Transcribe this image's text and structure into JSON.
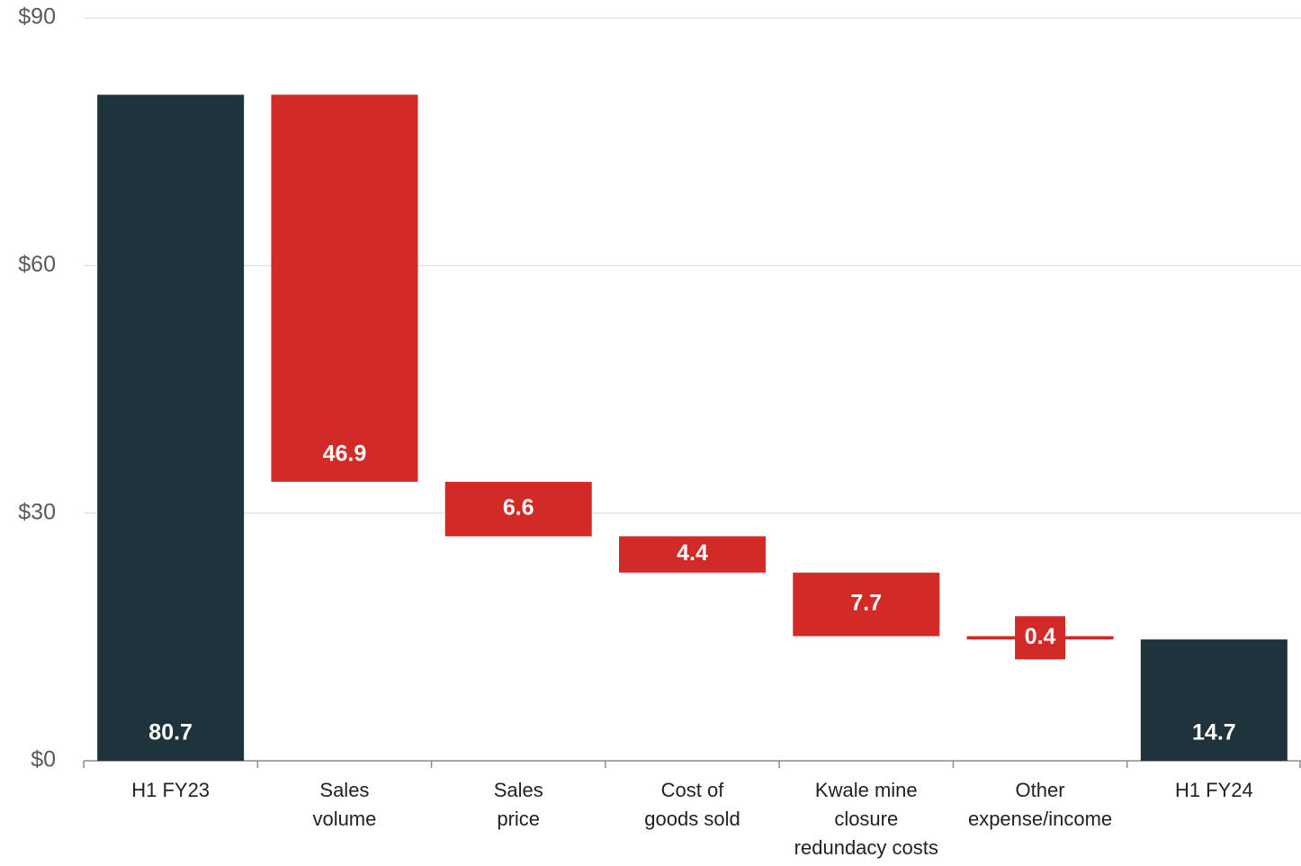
{
  "chart_data": {
    "type": "waterfall",
    "categories": [
      [
        "H1 FY23"
      ],
      [
        "Sales",
        "volume"
      ],
      [
        "Sales",
        "price"
      ],
      [
        "Cost of",
        "goods sold"
      ],
      [
        "Kwale mine",
        "closure",
        "redundacy costs"
      ],
      [
        "Other",
        "expense/income"
      ],
      [
        "H1 FY24"
      ]
    ],
    "values": [
      80.7,
      -46.9,
      -6.6,
      -4.4,
      -7.7,
      -0.4,
      14.7
    ],
    "value_labels": [
      "80.7",
      "46.9",
      "6.6",
      "4.4",
      "7.7",
      "0.4",
      "14.7"
    ],
    "measures": [
      "absolute",
      "relative",
      "relative",
      "relative",
      "relative",
      "relative",
      "total"
    ],
    "colors": {
      "total": "#1e333b",
      "decrease": "#d12a27"
    },
    "ylim": [
      0,
      90
    ],
    "yticks": [
      {
        "value": 0,
        "label": "$0"
      },
      {
        "value": 30,
        "label": "$30"
      },
      {
        "value": 60,
        "label": "$60"
      },
      {
        "value": 90,
        "label": "$90"
      }
    ],
    "grid": true
  }
}
